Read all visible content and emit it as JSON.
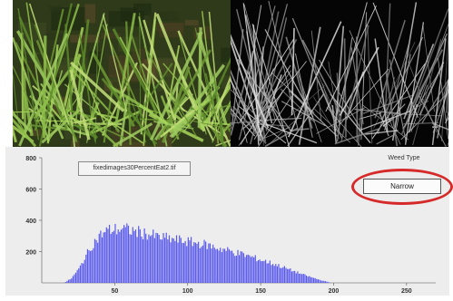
{
  "images": {
    "left_icon": "grass-photo-icon",
    "right_icon": "edge-detection-icon"
  },
  "file_label": "fixedimages30PercentEat2.tif",
  "weed_type": {
    "label": "Weed Type",
    "value": "Narrow"
  },
  "colors": {
    "bars": "#5a5aee",
    "annotation_ring": "#d62a2a"
  },
  "chart_data": {
    "type": "bar",
    "title": "",
    "xlabel": "",
    "ylabel": "",
    "xlim": [
      0,
      270
    ],
    "ylim": [
      0,
      800
    ],
    "x_ticks": [
      "50",
      "100",
      "150",
      "200",
      "250"
    ],
    "y_ticks": [
      "200",
      "400",
      "600",
      "800"
    ],
    "envelope": [
      {
        "x": 15,
        "y": 0
      },
      {
        "x": 20,
        "y": 30
      },
      {
        "x": 25,
        "y": 90
      },
      {
        "x": 30,
        "y": 180
      },
      {
        "x": 35,
        "y": 260
      },
      {
        "x": 40,
        "y": 315
      },
      {
        "x": 45,
        "y": 345
      },
      {
        "x": 50,
        "y": 350
      },
      {
        "x": 55,
        "y": 355
      },
      {
        "x": 60,
        "y": 345
      },
      {
        "x": 70,
        "y": 325
      },
      {
        "x": 80,
        "y": 300
      },
      {
        "x": 90,
        "y": 285
      },
      {
        "x": 100,
        "y": 270
      },
      {
        "x": 110,
        "y": 255
      },
      {
        "x": 120,
        "y": 230
      },
      {
        "x": 130,
        "y": 205
      },
      {
        "x": 140,
        "y": 180
      },
      {
        "x": 150,
        "y": 150
      },
      {
        "x": 160,
        "y": 120
      },
      {
        "x": 170,
        "y": 85
      },
      {
        "x": 180,
        "y": 50
      },
      {
        "x": 190,
        "y": 20
      },
      {
        "x": 196,
        "y": 5
      },
      {
        "x": 198,
        "y": 0
      }
    ]
  }
}
